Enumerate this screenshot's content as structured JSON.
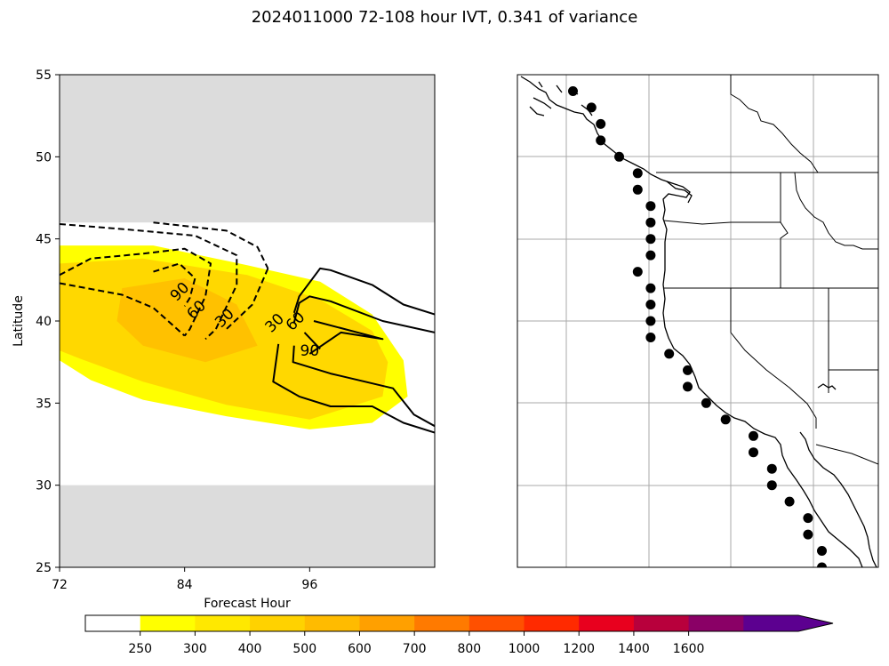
{
  "title": "2024011000 72-108 hour IVT, 0.341 of variance",
  "chart_data": [
    {
      "type": "contour",
      "xlabel": "Forecast Hour",
      "ylabel": "Latitude",
      "xlim": [
        72,
        108
      ],
      "ylim": [
        25,
        55
      ],
      "xticks": [
        "72",
        "84",
        "96"
      ],
      "yticks": [
        "25",
        "30",
        "35",
        "40",
        "45",
        "50",
        "55"
      ],
      "masked_lat_bands": [
        [
          25,
          30
        ],
        [
          46,
          55
        ]
      ],
      "filled_contours": [
        {
          "level": 250,
          "color": "#ffff00",
          "polygon": [
            [
              72,
              44.6
            ],
            [
              81,
              44.6
            ],
            [
              90,
              43.4
            ],
            [
              97,
              42.4
            ],
            [
              102,
              40.4
            ],
            [
              105,
              37.6
            ],
            [
              105.4,
              35.4
            ],
            [
              102,
              33.8
            ],
            [
              96,
              33.4
            ],
            [
              88,
              34.2
            ],
            [
              80,
              35.2
            ],
            [
              75,
              36.4
            ],
            [
              72,
              37.6
            ]
          ]
        },
        {
          "level": 300,
          "color": "#ffd800",
          "polygon": [
            [
              72,
              43.5
            ],
            [
              80,
              43.8
            ],
            [
              90,
              42.8
            ],
            [
              97,
              41.3
            ],
            [
              102,
              39.4
            ],
            [
              103.5,
              37.5
            ],
            [
              103,
              35.4
            ],
            [
              96,
              34.0
            ],
            [
              88,
              34.9
            ],
            [
              80,
              36.3
            ],
            [
              74,
              37.7
            ],
            [
              72,
              38.2
            ]
          ]
        },
        {
          "level": 400,
          "color": "#ffc100",
          "polygon": [
            [
              78,
              42.0
            ],
            [
              84,
              42.6
            ],
            [
              89,
              41.0
            ],
            [
              91,
              38.5
            ],
            [
              86,
              37.5
            ],
            [
              80,
              38.5
            ],
            [
              77.5,
              40.0
            ]
          ]
        }
      ],
      "line_contours": [
        {
          "level": -30,
          "style": "dashed",
          "points": [
            [
              81,
              46
            ],
            [
              88,
              45.5
            ],
            [
              91,
              44.5
            ],
            [
              92,
              43.2
            ]
          ]
        },
        {
          "level": -30,
          "style": "dashed",
          "points": [
            [
              72,
              45.9
            ],
            [
              78,
              45.6
            ],
            [
              85,
              45.2
            ],
            [
              89,
              44
            ],
            [
              89,
              42.2
            ],
            [
              87,
              39.5
            ],
            [
              86,
              38.9
            ]
          ]
        },
        {
          "level": -30,
          "style": "dashed",
          "points": [
            [
              92,
              43.2
            ],
            [
              90.5,
              41
            ],
            [
              88,
              39.5
            ]
          ]
        },
        {
          "level": -60,
          "style": "dashed",
          "points": [
            [
              72,
              42.8
            ],
            [
              75,
              43.8
            ],
            [
              80,
              44.1
            ],
            [
              84,
              44.4
            ],
            [
              86.5,
              43.5
            ],
            [
              86,
              41.5
            ],
            [
              84.5,
              39.5
            ],
            [
              84,
              39.1
            ]
          ]
        },
        {
          "level": -90,
          "style": "dashed",
          "points": [
            [
              72,
              42.3
            ],
            [
              78,
              41.6
            ],
            [
              81,
              40.8
            ],
            [
              84,
              39.1
            ]
          ]
        },
        {
          "level": -90,
          "style": "dashed",
          "points": [
            [
              81,
              43
            ],
            [
              83.5,
              43.5
            ],
            [
              85,
              42.6
            ],
            [
              84.5,
              41.4
            ],
            [
              84,
              40.9
            ]
          ]
        },
        {
          "level": 30,
          "style": "solid",
          "points": [
            [
              108,
              40.4
            ],
            [
              105,
              41
            ],
            [
              102,
              42.2
            ],
            [
              98,
              43.1
            ],
            [
              97,
              43.2
            ],
            [
              95,
              41.5
            ],
            [
              94.5,
              40.5
            ]
          ]
        },
        {
          "level": 30,
          "style": "solid",
          "points": [
            [
              93,
              38.6
            ],
            [
              92.5,
              36.3
            ],
            [
              95,
              35.4
            ],
            [
              98,
              34.8
            ],
            [
              102,
              34.8
            ],
            [
              105,
              33.8
            ],
            [
              108,
              33.2
            ]
          ]
        },
        {
          "level": 60,
          "style": "solid",
          "points": [
            [
              108,
              39.3
            ],
            [
              103,
              40
            ],
            [
              98,
              41.2
            ],
            [
              96,
              41.5
            ],
            [
              95,
              41.1
            ],
            [
              94.5,
              39.9
            ]
          ]
        },
        {
          "level": 60,
          "style": "solid",
          "points": [
            [
              94.5,
              38.5
            ],
            [
              94.4,
              37.5
            ],
            [
              98,
              36.8
            ],
            [
              104,
              35.9
            ],
            [
              106,
              34.3
            ],
            [
              108,
              33.6
            ]
          ]
        },
        {
          "level": 90,
          "style": "solid",
          "points": [
            [
              96,
              38
            ],
            [
              99,
              39.3
            ],
            [
              103,
              38.9
            ],
            [
              96.4,
              40
            ]
          ]
        },
        {
          "level": 90,
          "style": "solid",
          "points": [
            [
              95.5,
              39.3
            ],
            [
              97,
              38.3
            ]
          ]
        }
      ],
      "contour_labels": [
        {
          "text": "90",
          "x": 83.5,
          "y": 41.8,
          "angle": -45
        },
        {
          "text": "60",
          "x": 85.1,
          "y": 40.7,
          "angle": -45
        },
        {
          "text": "30",
          "x": 87.8,
          "y": 40.2,
          "angle": -45
        },
        {
          "text": "30",
          "x": 92.6,
          "y": 39.9,
          "angle": -45
        },
        {
          "text": "60",
          "x": 94.6,
          "y": 40.0,
          "angle": -45
        },
        {
          "text": "90",
          "x": 96.0,
          "y": 38.2,
          "angle": 0
        }
      ]
    },
    {
      "type": "map",
      "region": "US West Coast",
      "lon_range": [
        -139,
        -100
      ],
      "lat_range": [
        25,
        55
      ],
      "gridlines": true,
      "point_markers": [
        [
          -133,
          54
        ],
        [
          -131,
          53
        ],
        [
          -130,
          52
        ],
        [
          -130,
          51
        ],
        [
          -128,
          50
        ],
        [
          -126,
          49
        ],
        [
          -126,
          48
        ],
        [
          -124.6,
          47
        ],
        [
          -124.6,
          46
        ],
        [
          -124.6,
          45
        ],
        [
          -124.6,
          44
        ],
        [
          -126,
          43
        ],
        [
          -124.6,
          42
        ],
        [
          -124.6,
          41
        ],
        [
          -124.6,
          40
        ],
        [
          -124.6,
          39
        ],
        [
          -122.6,
          38
        ],
        [
          -120.6,
          37
        ],
        [
          -120.6,
          36
        ],
        [
          -118.6,
          35
        ],
        [
          -116.5,
          34
        ],
        [
          -113.5,
          33
        ],
        [
          -113.5,
          32
        ],
        [
          -111.5,
          31
        ],
        [
          -111.5,
          30
        ],
        [
          -109.6,
          29
        ],
        [
          -107.6,
          28
        ],
        [
          -107.6,
          27
        ],
        [
          -106.1,
          26
        ],
        [
          -106.1,
          25
        ]
      ]
    }
  ],
  "colorbar": {
    "ticks": [
      "250",
      "300",
      "400",
      "500",
      "600",
      "700",
      "800",
      "1000",
      "1200",
      "1400",
      "1600"
    ],
    "colors": [
      "#ffffff",
      "#ffff00",
      "#ffe800",
      "#ffd200",
      "#ffbb00",
      "#ffa000",
      "#ff7a00",
      "#ff5000",
      "#ff2a00",
      "#e8001e",
      "#b8003c",
      "#8a0066",
      "#5c0090"
    ]
  }
}
